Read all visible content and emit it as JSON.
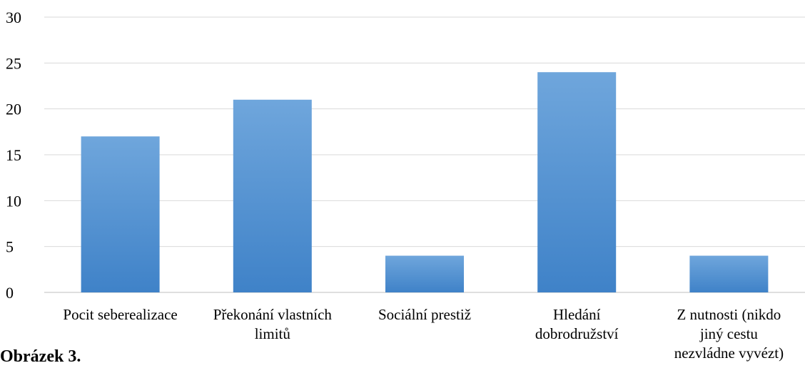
{
  "caption": "Obrázek 3.",
  "colors": {
    "bar_top": "#6fa6dc",
    "bar_bottom": "#3f82c8",
    "grid": "#d9d9d9",
    "axis": "#bfbfbf"
  },
  "chart_data": {
    "type": "bar",
    "categories": [
      [
        "Pocit seberealizace"
      ],
      [
        "Překonání vlastních",
        "limitů"
      ],
      [
        "Sociální prestiž"
      ],
      [
        "Hledání",
        "dobrodružství"
      ],
      [
        "Z nutnosti (nikdo",
        "jiný cestu",
        "nezvládne vyvézt)"
      ]
    ],
    "values": [
      17,
      21,
      4,
      24,
      4
    ],
    "ylim": [
      0,
      30
    ],
    "yticks": [
      0,
      5,
      10,
      15,
      20,
      25,
      30
    ],
    "grid": true,
    "title": "",
    "xlabel": "",
    "ylabel": ""
  }
}
